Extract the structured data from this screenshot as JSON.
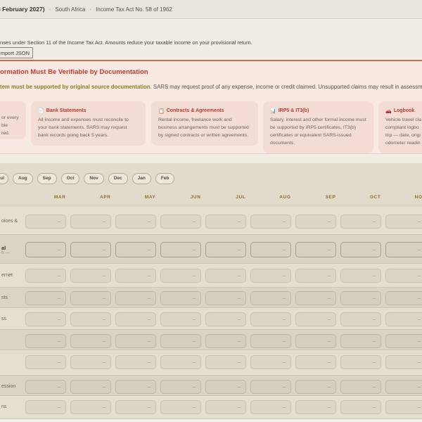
{
  "topbar": {
    "period_fragment": "8 February 2027)",
    "separator": "·",
    "region": "South Africa",
    "act": "Income Tax Act No. 58 of 1962"
  },
  "intro": {
    "description_fragment": "nses under Section 11 of the Income Tax Act. Amounts reduce your taxable income on your provisional return.",
    "import_button_fragment": "t Import JSON"
  },
  "alert": {
    "title_fragment": "ormation Must Be Verifiable by Documentation",
    "lead_bold_fragment": "tem must be supported by original source documentation",
    "lead_rest_fragment": ". SARS may request proof of any expense, income or credit claimed. Unsupported claims may result in assessmen",
    "cards": [
      {
        "icon": "",
        "glyph": "",
        "title": "",
        "lines": [
          "or every",
          "ble",
          "red."
        ],
        "partial": "left"
      },
      {
        "icon": "document-icon",
        "glyph": "📄",
        "title": "Bank Statements",
        "body": "All income and expenses must reconcile to your bank statements. SARS may request bank records going back 5 years."
      },
      {
        "icon": "contract-icon",
        "glyph": "📋",
        "title": "Contracts & Agreements",
        "body": "Rental income, freelance work and business arrangements must be supported by signed contracts or written agreements."
      },
      {
        "icon": "chart-icon",
        "glyph": "📊",
        "title": "IRP5 & IT3(b)",
        "body": "Salary, interest and other formal income must be supported by IRP5 certificates, IT3(b) certificates or equivalent SARS-issued documents."
      },
      {
        "icon": "car-icon",
        "glyph": "🚗",
        "title": "Logbook",
        "lines": [
          "Vehicle travel cla",
          "compliant logbo",
          "trip — date, origi",
          "odometer readin"
        ],
        "partial": "right"
      }
    ]
  },
  "month_chips": [
    "ul",
    "Aug",
    "Sep",
    "Oct",
    "Nov",
    "Dec",
    "Jan",
    "Feb"
  ],
  "table": {
    "columns": [
      "MAR",
      "APR",
      "MAY",
      "JUN",
      "JUL",
      "AUG",
      "SEP",
      "OCT",
      "NOV"
    ],
    "cell_placeholder": "–",
    "rows": [
      {
        "label_fragment": "oices &",
        "band": "light",
        "emphasis": false
      },
      {
        "label_fragment": "al",
        "sublabel_fragment": "h —",
        "band": "dark",
        "emphasis": true
      },
      {
        "label_fragment": "ernet",
        "band": "light",
        "emphasis": false
      },
      {
        "label_fragment": "sts",
        "band": "dark",
        "emphasis": false
      },
      {
        "label_fragment": "ss",
        "band": "light",
        "emphasis": false
      },
      {
        "label_fragment": "",
        "band": "dark",
        "emphasis": false
      },
      {
        "label_fragment": "",
        "band": "light",
        "emphasis": false
      },
      {
        "label_fragment": "ession",
        "band": "dark",
        "emphasis": false
      },
      {
        "label_fragment": "ns",
        "band": "light",
        "emphasis": false
      }
    ]
  },
  "colors": {
    "accent_red": "#bf3a2b",
    "olive_bold": "#8c7b22",
    "alert_bg": "#f8e9e3",
    "card_bg": "#f2dcd4",
    "table_bg": "#e2dbcc",
    "column_header_gold": "#8a6e2a"
  }
}
